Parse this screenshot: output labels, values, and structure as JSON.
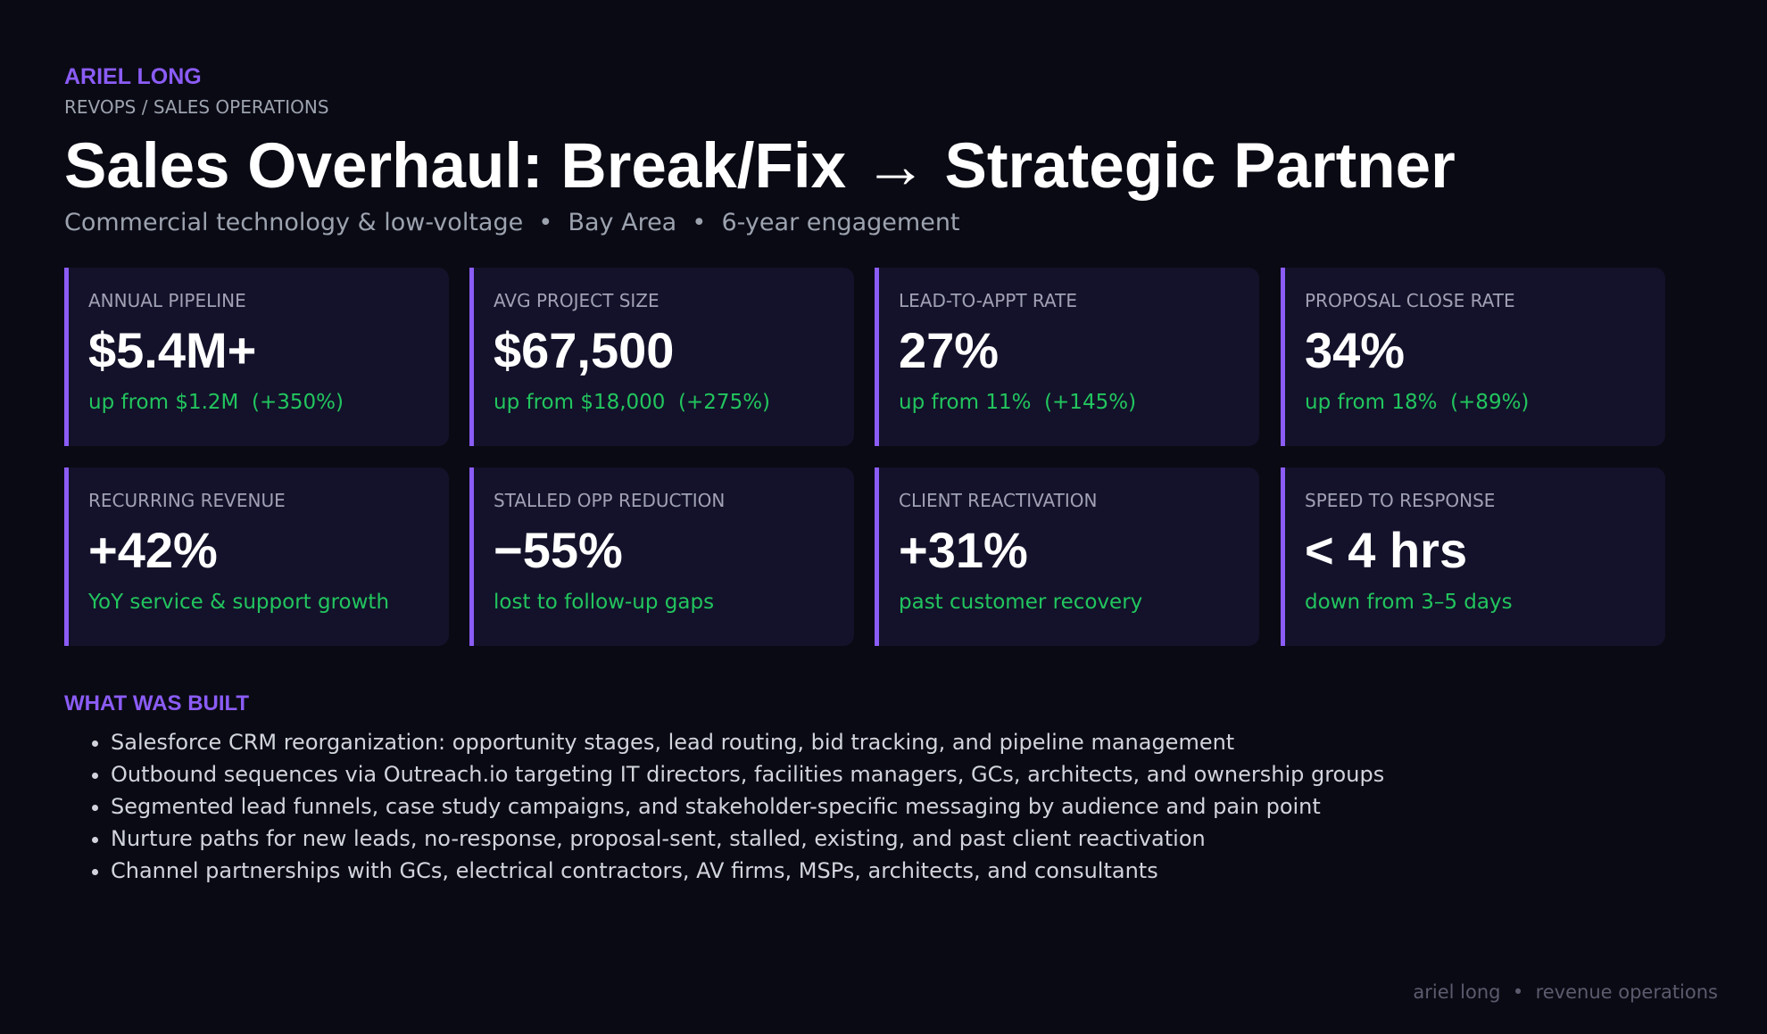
{
  "header": {
    "name": "ARIEL LONG",
    "role": "REVOPS / SALES OPERATIONS",
    "title": "Sales Overhaul: Break/Fix → Strategic Partner",
    "subtitle": "Commercial technology & low-voltage  •  Bay Area  •  6-year engagement"
  },
  "metrics": [
    {
      "label": "ANNUAL PIPELINE",
      "value": "$5.4M+",
      "note": "up from $1.2M  (+350%)"
    },
    {
      "label": "AVG PROJECT SIZE",
      "value": "$67,500",
      "note": "up from $18,000  (+275%)"
    },
    {
      "label": "LEAD-TO-APPT RATE",
      "value": "27%",
      "note": "up from 11%  (+145%)"
    },
    {
      "label": "PROPOSAL CLOSE RATE",
      "value": "34%",
      "note": "up from 18%  (+89%)"
    },
    {
      "label": "RECURRING REVENUE",
      "value": "+42%",
      "note": "YoY service & support growth"
    },
    {
      "label": "STALLED OPP REDUCTION",
      "value": "−55%",
      "note": "lost to follow-up gaps"
    },
    {
      "label": "CLIENT REACTIVATION",
      "value": "+31%",
      "note": "past customer recovery"
    },
    {
      "label": "SPEED TO RESPONSE",
      "value": "< 4 hrs",
      "note": "down from 3–5 days"
    }
  ],
  "built": {
    "heading": "WHAT WAS BUILT",
    "items": [
      "Salesforce CRM reorganization: opportunity stages, lead routing, bid tracking, and pipeline management",
      "Outbound sequences via Outreach.io targeting IT directors, facilities managers, GCs, architects, and ownership groups",
      "Segmented lead funnels, case study campaigns, and stakeholder-specific messaging by audience and pain point",
      "Nurture paths for new leads, no-response, proposal-sent, stalled, existing, and past client reactivation",
      "Channel partnerships with GCs, electrical contractors, AV firms, MSPs, architects, and consultants"
    ]
  },
  "footer": "ariel long  •  revenue operations"
}
